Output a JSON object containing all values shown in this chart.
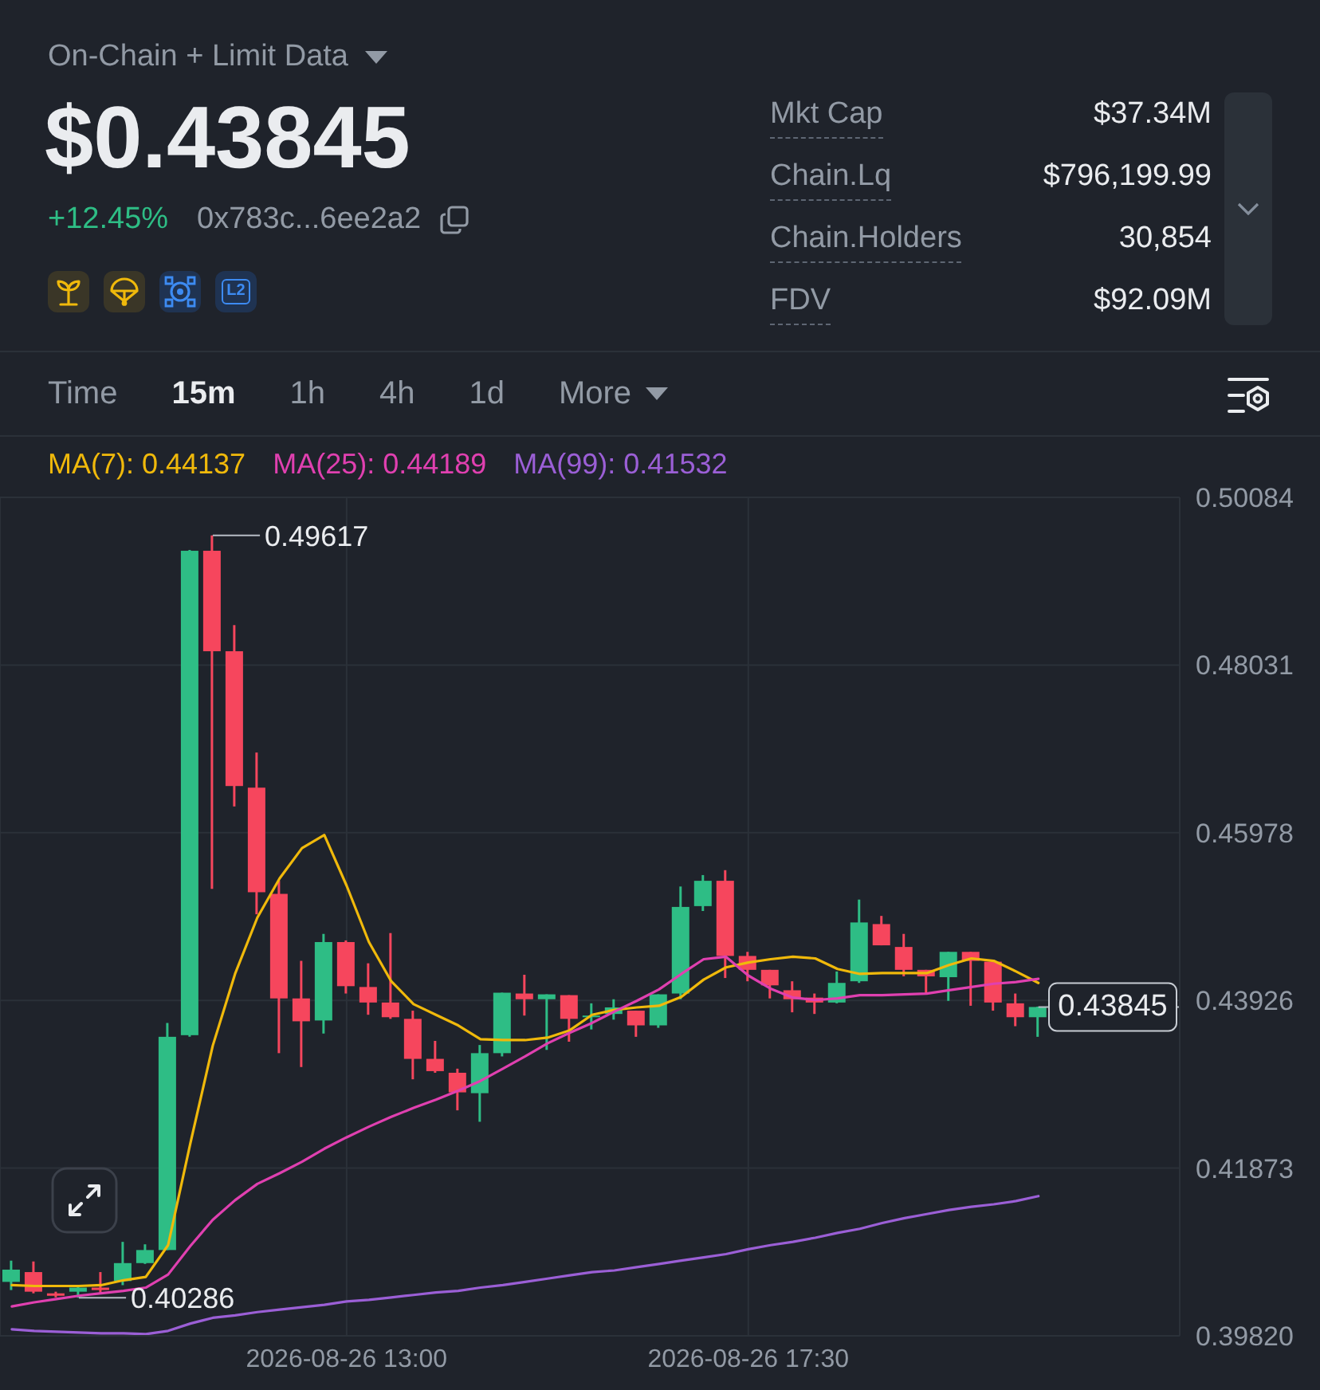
{
  "chart_data": [
    {
      "type": "other",
      "title": "On-Chain + Limit Data",
      "annotations": [
        "$0.43845",
        "+12.45%",
        "0x783c...6ee2a2",
        "L2",
        "Mkt Cap",
        "$37.34M",
        "Chain.Lq",
        "$796,199.99",
        "Chain.Holders",
        "30,854",
        "FDV",
        "$92.09M",
        "Time",
        "15m",
        "1h",
        "4h",
        "1d",
        "More"
      ]
    },
    {
      "type": "candlestick",
      "x": [
        "2026-08-26T09:15",
        "2026-08-26T09:30",
        "2026-08-26T09:45",
        "2026-08-26T10:00",
        "2026-08-26T10:15",
        "2026-08-26T10:30",
        "2026-08-26T10:45",
        "2026-08-26T11:00",
        "2026-08-26T11:15",
        "2026-08-26T11:30",
        "2026-08-26T11:45",
        "2026-08-26T12:00",
        "2026-08-26T12:15",
        "2026-08-26T12:30",
        "2026-08-26T12:45",
        "2026-08-26T13:00",
        "2026-08-26T13:15",
        "2026-08-26T13:30",
        "2026-08-26T13:45",
        "2026-08-26T14:00",
        "2026-08-26T14:15",
        "2026-08-26T14:30",
        "2026-08-26T14:45",
        "2026-08-26T15:00",
        "2026-08-26T15:15",
        "2026-08-26T15:30",
        "2026-08-26T15:45",
        "2026-08-26T16:00",
        "2026-08-26T16:15",
        "2026-08-26T16:30",
        "2026-08-26T16:45",
        "2026-08-26T17:00",
        "2026-08-26T17:15",
        "2026-08-26T17:30",
        "2026-08-26T17:45",
        "2026-08-26T18:00",
        "2026-08-26T18:15",
        "2026-08-26T18:30",
        "2026-08-26T18:45",
        "2026-08-26T19:00",
        "2026-08-26T19:15",
        "2026-08-26T19:30",
        "2026-08-26T19:45",
        "2026-08-26T20:00",
        "2026-08-26T20:15",
        "2026-08-26T20:30",
        "2026-08-26T20:45"
      ],
      "ohlc": [
        [
          0.4048,
          0.4074,
          0.4038,
          0.4063
        ],
        [
          0.406,
          0.4073,
          0.4034,
          0.4036
        ],
        [
          0.4034,
          0.4036,
          0.4029,
          0.4031
        ],
        [
          0.4036,
          0.4044,
          0.40286,
          0.4041
        ],
        [
          0.4041,
          0.406,
          0.4035,
          0.4038
        ],
        [
          0.4049,
          0.4097,
          0.4044,
          0.4071
        ],
        [
          0.4071,
          0.4094,
          0.407,
          0.4087
        ],
        [
          0.4087,
          0.4365,
          0.4087,
          0.4348
        ],
        [
          0.435,
          0.4944,
          0.4348,
          0.4943
        ],
        [
          0.4943,
          0.49617,
          0.4529,
          0.482
        ],
        [
          0.482,
          0.4852,
          0.463,
          0.4655
        ],
        [
          0.4653,
          0.4696,
          0.4498,
          0.4525
        ],
        [
          0.4523,
          0.4539,
          0.4328,
          0.4395
        ],
        [
          0.4395,
          0.4441,
          0.4311,
          0.4367
        ],
        [
          0.4368,
          0.4474,
          0.4352,
          0.4464
        ],
        [
          0.4464,
          0.4466,
          0.4401,
          0.441
        ],
        [
          0.4409,
          0.4438,
          0.4375,
          0.439
        ],
        [
          0.439,
          0.4475,
          0.437,
          0.4372
        ],
        [
          0.437,
          0.438,
          0.4296,
          0.4321
        ],
        [
          0.4321,
          0.4343,
          0.4304,
          0.4306
        ],
        [
          0.4304,
          0.4309,
          0.4258,
          0.428
        ],
        [
          0.4279,
          0.4338,
          0.4244,
          0.4328
        ],
        [
          0.4328,
          0.4402,
          0.4324,
          0.4402
        ],
        [
          0.4401,
          0.4424,
          0.4374,
          0.4394
        ],
        [
          0.4394,
          0.44,
          0.4332,
          0.44
        ],
        [
          0.4399,
          0.4399,
          0.4342,
          0.437
        ],
        [
          0.4372,
          0.4389,
          0.4357,
          0.4374
        ],
        [
          0.4376,
          0.4394,
          0.4369,
          0.4384
        ],
        [
          0.438,
          0.438,
          0.4348,
          0.4362
        ],
        [
          0.4362,
          0.44,
          0.4359,
          0.44
        ],
        [
          0.4401,
          0.4532,
          0.4394,
          0.4507
        ],
        [
          0.4508,
          0.4546,
          0.4502,
          0.4539
        ],
        [
          0.4539,
          0.4552,
          0.442,
          0.4447
        ],
        [
          0.4447,
          0.4452,
          0.4416,
          0.443
        ],
        [
          0.443,
          0.443,
          0.4395,
          0.4411
        ],
        [
          0.4405,
          0.4416,
          0.4378,
          0.4394
        ],
        [
          0.4396,
          0.4401,
          0.4376,
          0.439
        ],
        [
          0.439,
          0.4428,
          0.4389,
          0.4414
        ],
        [
          0.4416,
          0.4516,
          0.4414,
          0.4488
        ],
        [
          0.4486,
          0.4496,
          0.446,
          0.446
        ],
        [
          0.4458,
          0.4474,
          0.4422,
          0.443
        ],
        [
          0.443,
          0.443,
          0.4401,
          0.4422
        ],
        [
          0.4421,
          0.4452,
          0.4392,
          0.4452
        ],
        [
          0.4452,
          0.4452,
          0.4386,
          0.4441
        ],
        [
          0.444,
          0.444,
          0.438,
          0.439
        ],
        [
          0.4389,
          0.4401,
          0.4361,
          0.4372
        ],
        [
          0.4372,
          0.4385,
          0.4348,
          0.43845
        ]
      ],
      "colors": [
        "#2ebd85",
        "#f6465d",
        "#f6465d",
        "#2ebd85",
        "#f6465d",
        "#2ebd85",
        "#2ebd85",
        "#2ebd85",
        "#2ebd85",
        "#f6465d",
        "#f6465d",
        "#f6465d",
        "#f6465d",
        "#f6465d",
        "#2ebd85",
        "#f6465d",
        "#f6465d",
        "#f6465d",
        "#f6465d",
        "#f6465d",
        "#f6465d",
        "#2ebd85",
        "#2ebd85",
        "#f6465d",
        "#2ebd85",
        "#f6465d",
        "#2ebd85",
        "#2ebd85",
        "#f6465d",
        "#2ebd85",
        "#2ebd85",
        "#2ebd85",
        "#f6465d",
        "#f6465d",
        "#f6465d",
        "#f6465d",
        "#f6465d",
        "#2ebd85",
        "#2ebd85",
        "#f6465d",
        "#f6465d",
        "#f6465d",
        "#2ebd85",
        "#f6465d",
        "#f6465d",
        "#f6465d",
        "#2ebd85"
      ],
      "series": [
        {
          "name": "MA(7): 0.44137",
          "type": "line",
          "color": "#f0b90b",
          "values": [
            0.4044,
            0.4043,
            0.4043,
            0.4043,
            0.4044,
            0.405,
            0.4054,
            0.4093,
            0.4218,
            0.4337,
            0.4425,
            0.4494,
            0.4542,
            0.4579,
            0.4595,
            0.4533,
            0.4464,
            0.4416,
            0.4388,
            0.4375,
            0.4362,
            0.4345,
            0.4344,
            0.4344,
            0.4347,
            0.4356,
            0.4375,
            0.4381,
            0.4384,
            0.4386,
            0.4397,
            0.4418,
            0.4433,
            0.4439,
            0.4443,
            0.4446,
            0.4444,
            0.4431,
            0.4425,
            0.4426,
            0.4426,
            0.4426,
            0.4436,
            0.4444,
            0.4441,
            0.4428,
            0.4414
          ]
        },
        {
          "name": "MA(25): 0.44189",
          "type": "line",
          "color": "#e040b0",
          "values": [
            0.4018,
            0.4023,
            0.4027,
            0.4031,
            0.4034,
            0.4037,
            0.4041,
            0.4057,
            0.4092,
            0.4124,
            0.4148,
            0.4168,
            0.4181,
            0.4195,
            0.4211,
            0.4225,
            0.4238,
            0.425,
            0.4261,
            0.4271,
            0.4282,
            0.4294,
            0.4309,
            0.4324,
            0.434,
            0.4353,
            0.4365,
            0.4379,
            0.4392,
            0.4406,
            0.4425,
            0.4443,
            0.4446,
            0.4423,
            0.4407,
            0.4396,
            0.4393,
            0.4395,
            0.4399,
            0.4399,
            0.44,
            0.4401,
            0.4405,
            0.4409,
            0.4413,
            0.4415,
            0.4419
          ]
        },
        {
          "name": "MA(99): 0.41532",
          "type": "line",
          "color": "#9b5fd6",
          "values": [
            0.399,
            0.3988,
            0.3987,
            0.3986,
            0.3985,
            0.3985,
            0.3984,
            0.3988,
            0.3997,
            0.4004,
            0.4007,
            0.4011,
            0.4014,
            0.4017,
            0.402,
            0.4024,
            0.4026,
            0.4029,
            0.4032,
            0.4035,
            0.4037,
            0.4041,
            0.4044,
            0.4048,
            0.4052,
            0.4056,
            0.406,
            0.4062,
            0.4066,
            0.407,
            0.4074,
            0.4078,
            0.4082,
            0.4088,
            0.4093,
            0.4097,
            0.4102,
            0.4108,
            0.4113,
            0.412,
            0.4126,
            0.4131,
            0.4136,
            0.414,
            0.4143,
            0.4147,
            0.4153
          ]
        }
      ],
      "xlim": [
        "2026-08-26T09:07",
        "2026-08-26T22:20"
      ],
      "xticks": [
        {
          "value": "2026-08-26T13:00",
          "label": "2026-08-26 13:00"
        },
        {
          "value": "2026-08-26T17:30",
          "label": "2026-08-26 17:30"
        }
      ],
      "ylim": [
        0.3982,
        0.50084
      ],
      "yticks": [
        {
          "value": 0.3982,
          "label": "0.39820"
        },
        0.41873,
        0.43926,
        0.45978,
        0.48031,
        0.50084
      ],
      "grid": true,
      "legend": "top left",
      "marker": "none",
      "line_style": "solid",
      "ref_lines": [
        {
          "axis": "y",
          "value": 0.43845,
          "label": "0.43845"
        }
      ],
      "annotations": [
        {
          "text": "0.49617",
          "x": "2026-08-26T11:30",
          "y": 0.49617
        },
        {
          "text": "0.40286",
          "x": "2026-08-26T10:00",
          "y": 0.40286
        }
      ]
    }
  ]
}
